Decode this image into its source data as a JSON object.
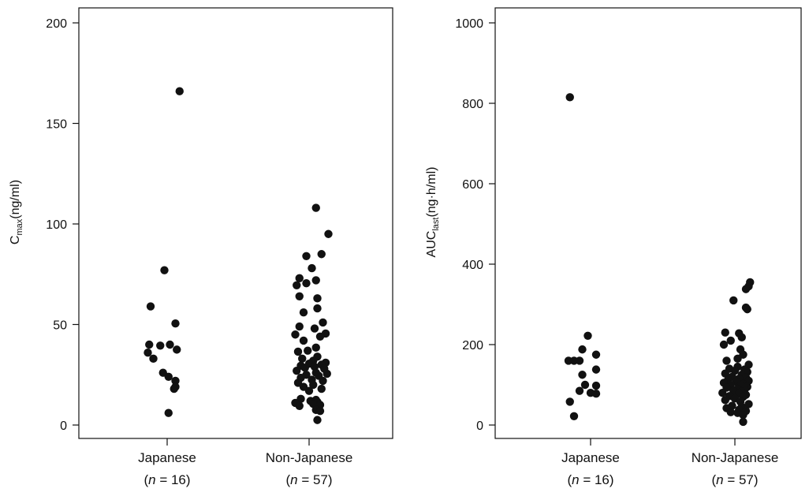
{
  "chart_data": [
    {
      "type": "scatter",
      "ylabel": "Cmax(ng/ml)",
      "ylabel_main": "C",
      "ylabel_sub": "max",
      "ylabel_rest": "(ng/ml)",
      "ylim": [
        0,
        200
      ],
      "yticks": [
        "0",
        "50",
        "100",
        "150",
        "200"
      ],
      "grid": false,
      "categories": [
        {
          "name": "Japanese",
          "n_prefix": "(",
          "n_var": "n",
          "n_suffix": " = 16)"
        },
        {
          "name": "Non-Japanese",
          "n_prefix": "(",
          "n_var": "n",
          "n_suffix": "  = 57)"
        }
      ],
      "series": [
        {
          "category_index": 0,
          "jitter": [
            0.09,
            -0.02,
            -0.12,
            0.06,
            0.02,
            -0.13,
            -0.05,
            -0.14,
            0.07,
            -0.1,
            -0.03,
            0.01,
            0.06,
            0.06,
            0.05,
            0.01
          ],
          "values": [
            166,
            77,
            59,
            50.5,
            40,
            40,
            39.5,
            36,
            37.5,
            33,
            26,
            24,
            22,
            19,
            18,
            6
          ]
        },
        {
          "category_index": 1,
          "jitter": [
            0.05,
            0.14,
            0.09,
            -0.02,
            0.02,
            -0.07,
            0.05,
            -0.02,
            -0.09,
            -0.07,
            0.06,
            0.06,
            -0.04,
            0.1,
            -0.07,
            0.04,
            0.12,
            -0.1,
            0.08,
            -0.04,
            0.05,
            -0.01,
            -0.08,
            0.06,
            -0.05,
            0.03,
            0.12,
            0.0,
            0.09,
            -0.06,
            0.04,
            -0.03,
            0.11,
            -0.09,
            0.05,
            0.13,
            -0.02,
            0.07,
            -0.06,
            0.02,
            0.1,
            -0.08,
            0.03,
            -0.04,
            0.09,
            0.0,
            -0.06,
            0.05,
            0.01,
            0.06,
            -0.1,
            0.03,
            0.08,
            -0.07,
            0.05,
            0.08,
            0.06
          ],
          "values": [
            108,
            95,
            85,
            84,
            78,
            73,
            72,
            70.5,
            69.5,
            64,
            63,
            58,
            56,
            51,
            49,
            48,
            45.5,
            45,
            44,
            42,
            38.5,
            37,
            36.5,
            34,
            33,
            32,
            31,
            30.5,
            30,
            29.5,
            29,
            28.5,
            28,
            27,
            26,
            25.5,
            25,
            24.5,
            23.5,
            22.5,
            22,
            21,
            20,
            19,
            18,
            17,
            13,
            12.5,
            12,
            11.5,
            11,
            10.5,
            10,
            9.5,
            7.5,
            7,
            2.5
          ]
        }
      ]
    },
    {
      "type": "scatter",
      "ylabel": "AUClast(ng·h/ml)",
      "ylabel_main": "AUC",
      "ylabel_sub": "last",
      "ylabel_rest": "(ng·h/ml)",
      "ylim": [
        0,
        1000
      ],
      "yticks": [
        "0",
        "200",
        "400",
        "600",
        "800",
        "1000"
      ],
      "grid": false,
      "categories": [
        {
          "name": "Japanese",
          "n_prefix": "(",
          "n_var": "n",
          "n_suffix": " = 16)"
        },
        {
          "name": "Non-Japanese",
          "n_prefix": "(",
          "n_var": "n",
          "n_suffix": " = 57)"
        }
      ],
      "series": [
        {
          "category_index": 0,
          "jitter": [
            -0.15,
            -0.02,
            -0.06,
            0.04,
            -0.16,
            -0.12,
            -0.08,
            0.04,
            -0.06,
            -0.04,
            0.04,
            -0.08,
            0.0,
            0.04,
            -0.15,
            -0.12
          ],
          "values": [
            815,
            222,
            188,
            175,
            160,
            160,
            160,
            138,
            125,
            100,
            98,
            85,
            80,
            78,
            58,
            22
          ]
        },
        {
          "category_index": 1,
          "jitter": [
            0.11,
            0.1,
            0.08,
            -0.01,
            0.08,
            0.09,
            -0.07,
            0.03,
            0.05,
            -0.03,
            -0.08,
            0.04,
            0.06,
            0.02,
            -0.06,
            0.1,
            0.02,
            -0.04,
            0.07,
            0.0,
            0.09,
            -0.07,
            0.05,
            -0.02,
            0.08,
            0.03,
            -0.05,
            0.1,
            0.01,
            -0.08,
            0.06,
            -0.03,
            0.04,
            0.09,
            -0.06,
            0.02,
            0.07,
            -0.01,
            0.05,
            -0.09,
            0.03,
            0.08,
            -0.04,
            0.06,
            0.0,
            -0.07,
            0.04,
            0.1,
            -0.02,
            0.05,
            -0.06,
            0.03,
            0.08,
            -0.03,
            0.02,
            0.06,
            0.06
          ],
          "values": [
            355,
            345,
            338,
            310,
            292,
            288,
            230,
            228,
            218,
            210,
            200,
            188,
            175,
            165,
            160,
            150,
            145,
            140,
            138,
            135,
            132,
            128,
            125,
            120,
            118,
            115,
            112,
            110,
            108,
            105,
            102,
            100,
            98,
            95,
            93,
            90,
            88,
            85,
            83,
            80,
            78,
            75,
            72,
            70,
            66,
            62,
            58,
            52,
            48,
            45,
            42,
            38,
            35,
            32,
            30,
            25,
            8
          ]
        }
      ]
    }
  ]
}
